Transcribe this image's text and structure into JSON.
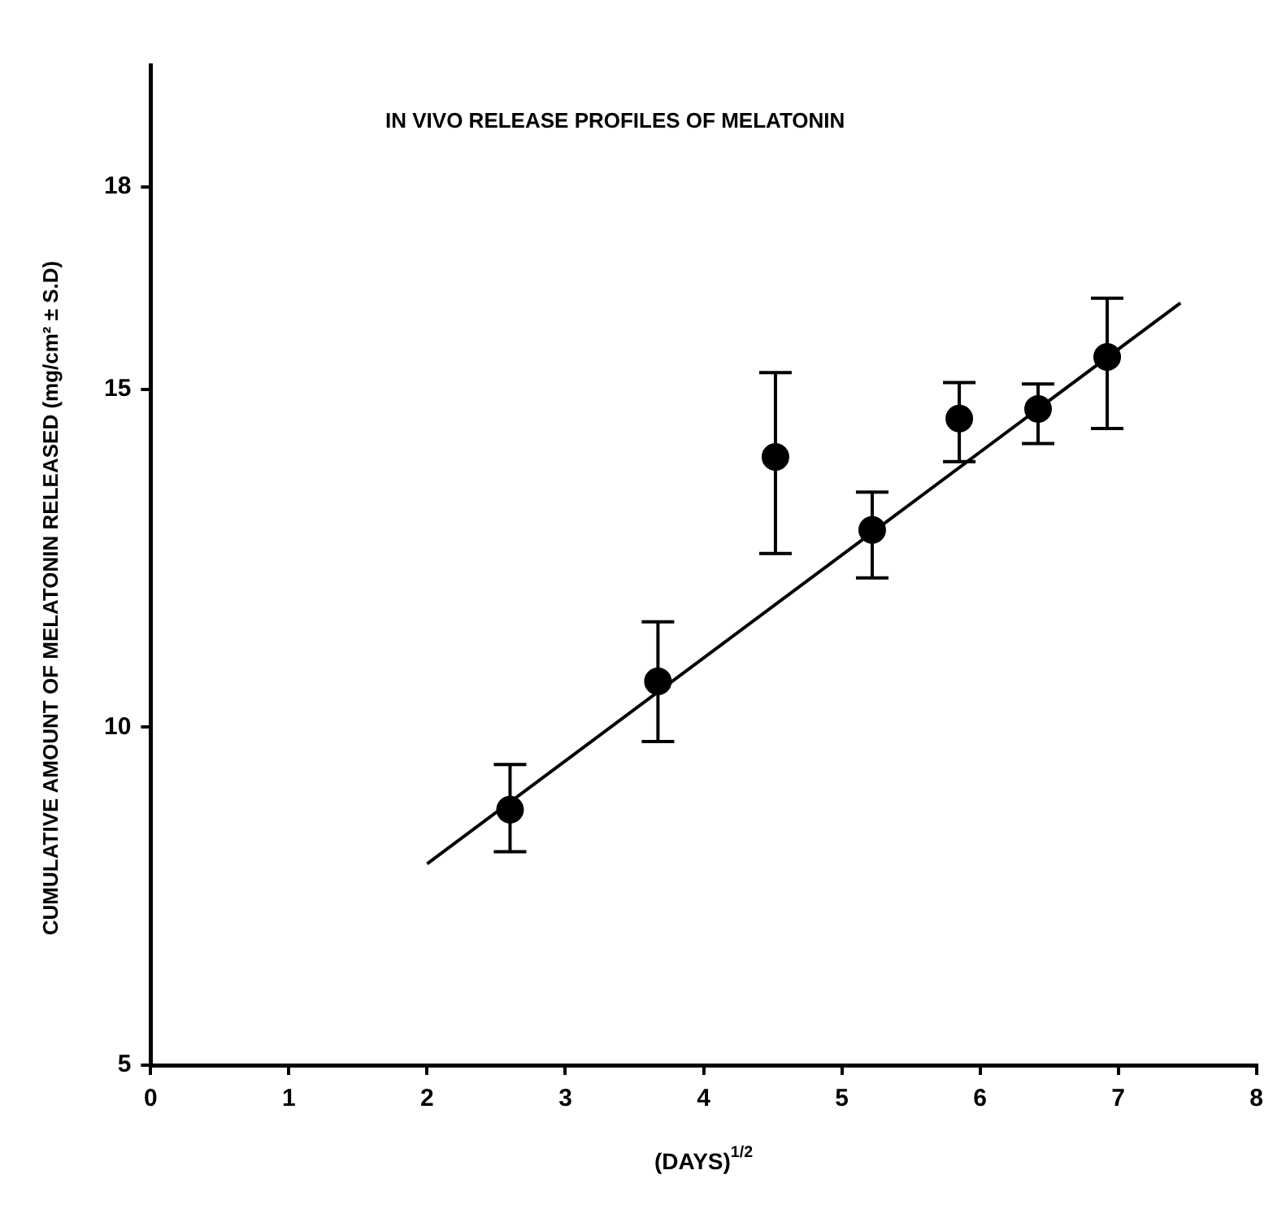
{
  "chart_data": {
    "type": "scatter",
    "title": "IN VIVO RELEASE PROFILES OF MELATONIN",
    "xlabel": "(DAYS)$^{1/2}$",
    "ylabel": "CUMULATIVE AMOUNT OF MELATONIN RELEASED (mg/cm² ± S.D)",
    "xlim": [
      0,
      8
    ],
    "xticks": [
      0,
      1,
      2,
      3,
      4,
      5,
      6,
      7,
      8
    ],
    "ylim": [
      5,
      19.8
    ],
    "yticks": [
      5,
      10,
      15,
      18
    ],
    "grid": false,
    "legend": false,
    "marker": "circle",
    "series": [
      {
        "type": "scatter",
        "color": "#000000",
        "x": [
          2.6,
          3.67,
          4.52,
          5.22,
          5.85,
          6.42,
          6.92
        ],
        "values": [
          8.78,
          10.68,
          14.0,
          12.92,
          14.57,
          14.71,
          15.48
        ],
        "errors": [
          [
            8.16,
            9.45
          ],
          [
            9.79,
            11.56
          ],
          [
            12.57,
            15.25
          ],
          [
            12.21,
            13.48
          ],
          [
            13.93,
            15.1
          ],
          [
            14.2,
            15.08
          ],
          [
            14.42,
            16.35
          ]
        ]
      },
      {
        "type": "line",
        "color": "#000000",
        "line_style": "solid",
        "marker": "none",
        "x": [
          2,
          7.45
        ],
        "values": [
          7.98,
          16.28
        ]
      }
    ]
  }
}
